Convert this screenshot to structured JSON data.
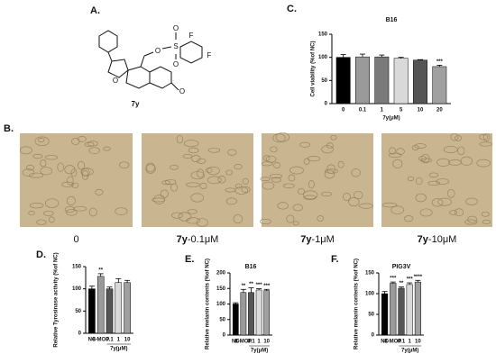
{
  "panels": {
    "A": "A.",
    "B": "B."
  },
  "structure": {
    "label": "7y",
    "atoms": [
      "O",
      "S",
      "O",
      "O",
      "F",
      "F",
      "O",
      "O"
    ]
  },
  "micrographs": [
    {
      "label": "0"
    },
    {
      "compound": "7y",
      "dose": "-0.1μM"
    },
    {
      "compound": "7y",
      "dose": "-1μM"
    },
    {
      "compound": "7y",
      "dose": "-10μM"
    }
  ],
  "chart_data": [
    {
      "type": "bar",
      "panel": "C.",
      "title": "B16",
      "categories": [
        "0",
        "0.1",
        "1",
        "5",
        "10",
        "20"
      ],
      "values": [
        100,
        101,
        101,
        98,
        94,
        80
      ],
      "errors": [
        6,
        6,
        4,
        2,
        1,
        3
      ],
      "significance": [
        null,
        null,
        null,
        null,
        null,
        "***"
      ],
      "colors": [
        "#000000",
        "#9a9a9a",
        "#7a7a7a",
        "#d9d9d9",
        "#555555",
        "#a0a0a0"
      ],
      "ylim": [
        0,
        150
      ],
      "yticks": [
        0,
        50,
        100,
        150
      ],
      "ylabel": "Cell viability (%of NC)",
      "xlabel": "7y(μM)"
    },
    {
      "type": "bar",
      "panel": "D.",
      "categories": [
        "NC",
        "8-MOP",
        "0.1",
        "1",
        "10"
      ],
      "values": [
        100,
        128,
        100,
        114,
        114
      ],
      "errors": [
        6,
        6,
        4,
        9,
        5
      ],
      "significance": [
        null,
        "**",
        null,
        null,
        null
      ],
      "colors": [
        "#000000",
        "#9a9a9a",
        "#555555",
        "#d9d9d9",
        "#a0a0a0"
      ],
      "ylim": [
        0,
        150
      ],
      "yticks": [
        0,
        50,
        100,
        150
      ],
      "ylabel": "Relative Tyrosinase activity (%of NC)",
      "xlabel": "7y(μM)"
    },
    {
      "type": "bar",
      "panel": "E.",
      "title": "B16",
      "categories": [
        "NC",
        "8-MOP",
        "0.1",
        "1",
        "10"
      ],
      "values": [
        100,
        137,
        137,
        145,
        143
      ],
      "errors": [
        4,
        10,
        15,
        4,
        4
      ],
      "significance": [
        null,
        "**",
        "**",
        "***",
        "***"
      ],
      "colors": [
        "#000000",
        "#9a9a9a",
        "#555555",
        "#d9d9d9",
        "#a0a0a0"
      ],
      "ylim": [
        0,
        200
      ],
      "yticks": [
        0,
        50,
        100,
        150,
        200
      ],
      "ylabel": "Relative melanin contents (%of NC)",
      "xlabel": "7y(μM)"
    },
    {
      "type": "bar",
      "panel": "F.",
      "title": "PIG3V",
      "categories": [
        "NC",
        "8-MOP",
        "0.1",
        "1",
        "10"
      ],
      "values": [
        100,
        125,
        113,
        122,
        128
      ],
      "errors": [
        5,
        3,
        3,
        4,
        4
      ],
      "significance": [
        null,
        "***",
        "**",
        "***",
        "****"
      ],
      "colors": [
        "#000000",
        "#9a9a9a",
        "#555555",
        "#d9d9d9",
        "#a0a0a0"
      ],
      "ylim": [
        0,
        150
      ],
      "yticks": [
        0,
        50,
        100,
        150
      ],
      "ylabel": "Relative melanin contents (%of NC)",
      "xlabel": "7y(μM)"
    }
  ]
}
